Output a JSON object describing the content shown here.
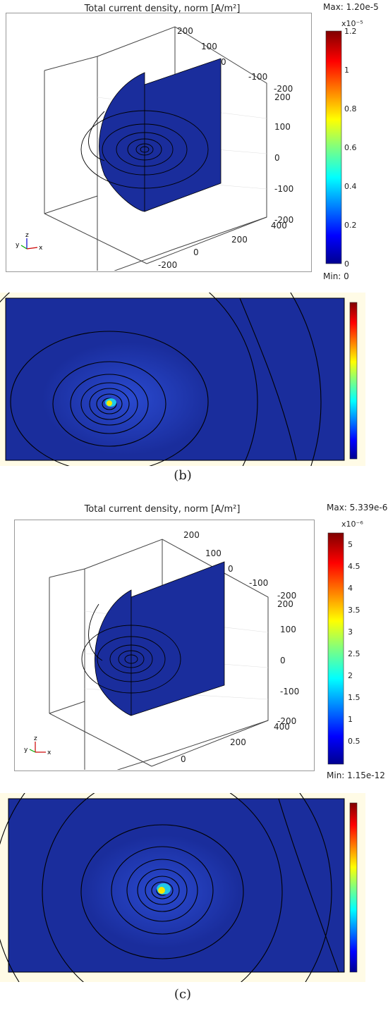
{
  "panel_b": {
    "title": "Total current density, norm [A/m²]",
    "max_label": "Max: 1.20e-5",
    "min_label": "Min: 0",
    "scale_exp": "x10⁻⁵",
    "colorbar_ticks": [
      "1.2",
      "1",
      "0.8",
      "0.6",
      "0.4",
      "0.2",
      "0"
    ],
    "axis_ticks_top": [
      "200",
      "100",
      "0",
      "-100",
      "-200"
    ],
    "axis_ticks_right": [
      "200",
      "100",
      "0",
      "-100",
      "-200"
    ],
    "axis_ticks_bottom": [
      "400",
      "200",
      "0",
      "-200"
    ],
    "triad": {
      "x": "x",
      "y": "y",
      "z": "z"
    },
    "caption": "(b)"
  },
  "panel_c": {
    "title": "Total current density, norm [A/m²]",
    "max_label": "Max: 5.339e-6",
    "min_label": "Min: 1.15e-12",
    "scale_exp": "x10⁻⁶",
    "colorbar_ticks": [
      "5",
      "4.5",
      "4",
      "3.5",
      "3",
      "2.5",
      "2",
      "1.5",
      "1",
      "0.5"
    ],
    "axis_ticks_top": [
      "200",
      "100",
      "0",
      "-100",
      "-200"
    ],
    "axis_ticks_right": [
      "200",
      "100",
      "0",
      "-100",
      "-200"
    ],
    "axis_ticks_bottom": [
      "400",
      "200",
      "0"
    ],
    "triad": {
      "x": "x",
      "y": "y",
      "z": "z"
    },
    "caption": "(c)"
  },
  "colors": {
    "field_blue": "#1a2d9c",
    "dark_blue": "#000080",
    "hotspot_yellow": "#f5e600",
    "hotspot_cyan": "#21c8e8",
    "frame": "#000000"
  }
}
